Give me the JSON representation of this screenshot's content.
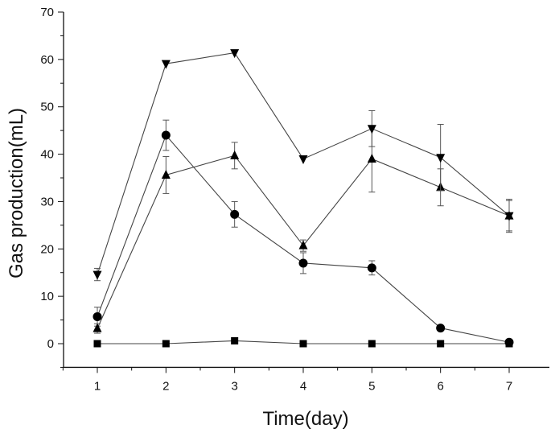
{
  "chart_data": {
    "type": "line",
    "title": "",
    "xlabel": "Time(day)",
    "ylabel": "Gas production(mL)",
    "xlim": [
      0.5,
      7.8
    ],
    "ylim": [
      -5,
      70
    ],
    "x": [
      1,
      2,
      3,
      4,
      5,
      6,
      7
    ],
    "xticks": [
      "1",
      "2",
      "3",
      "4",
      "5",
      "6",
      "7"
    ],
    "yticks": [
      "0",
      "10",
      "20",
      "30",
      "40",
      "50",
      "60",
      "70"
    ],
    "grid": false,
    "series": [
      {
        "name": "square",
        "marker": "square",
        "values": [
          0,
          0,
          0.6,
          0,
          0,
          0,
          0
        ],
        "errors": [
          0,
          0,
          0,
          0,
          0,
          0,
          0
        ]
      },
      {
        "name": "circle",
        "marker": "circle",
        "values": [
          5.7,
          44.0,
          27.3,
          17.0,
          16.0,
          3.3,
          0.3
        ],
        "errors": [
          2.0,
          3.2,
          2.7,
          2.2,
          1.5,
          0.3,
          0.2
        ]
      },
      {
        "name": "triangle-up",
        "marker": "triangle-up",
        "values": [
          3.2,
          35.6,
          39.7,
          20.7,
          39.0,
          33.0,
          27.0
        ],
        "errors": [
          1.0,
          3.9,
          2.8,
          1.2,
          7.0,
          3.9,
          3.2
        ]
      },
      {
        "name": "triangle-down",
        "marker": "triangle-down",
        "values": [
          14.6,
          59.1,
          61.4,
          39.0,
          45.4,
          39.3,
          27.0
        ],
        "errors": [
          1.3,
          0.4,
          0.4,
          0.5,
          3.8,
          7.0,
          3.5
        ]
      }
    ]
  }
}
